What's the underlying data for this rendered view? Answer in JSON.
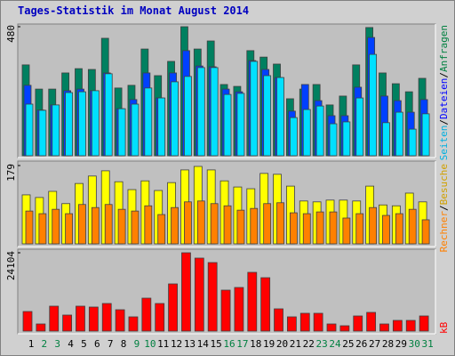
{
  "chart_data": [
    {
      "type": "bar",
      "title": "Tages-Statistik im Monat August 2014",
      "legend_separator": "/",
      "categories": [
        "1",
        "2",
        "3",
        "4",
        "5",
        "6",
        "7",
        "8",
        "9",
        "10",
        "11",
        "12",
        "13",
        "14",
        "15",
        "16",
        "17",
        "18",
        "19",
        "20",
        "21",
        "22",
        "23",
        "24",
        "25",
        "26",
        "27",
        "28",
        "29",
        "30",
        "31"
      ],
      "category_colors": [
        "#000000",
        "#008040",
        "#008040",
        "#000000",
        "#000000",
        "#000000",
        "#000000",
        "#000000",
        "#008040",
        "#008040",
        "#000000",
        "#000000",
        "#000000",
        "#000000",
        "#000000",
        "#008040",
        "#008040",
        "#000000",
        "#000000",
        "#000000",
        "#000000",
        "#000000",
        "#008040",
        "#008040",
        "#000000",
        "#000000",
        "#000000",
        "#000000",
        "#000000",
        "#008040",
        "#008040"
      ],
      "ylim": [
        0,
        480
      ],
      "yticks": [
        480
      ],
      "series": [
        {
          "name": "Anfragen",
          "color": "#008060",
          "label_color": "#008040",
          "values": [
            338,
            248,
            248,
            308,
            324,
            321,
            437,
            252,
            262,
            397,
            298,
            351,
            480,
            397,
            427,
            265,
            258,
            391,
            367,
            341,
            212,
            248,
            265,
            189,
            222,
            338,
            477,
            308,
            268,
            238,
            288
          ]
        },
        {
          "name": "Dateien",
          "color": "#0040ff",
          "label_color": "#0000ff",
          "values": [
            262,
            170,
            189,
            242,
            248,
            242,
            308,
            175,
            209,
            308,
            215,
            308,
            391,
            334,
            331,
            248,
            238,
            354,
            321,
            291,
            166,
            265,
            205,
            149,
            149,
            255,
            440,
            222,
            205,
            162,
            209
          ]
        },
        {
          "name": "Seiten",
          "color": "#00e0ff",
          "label_color": "#00b0e0",
          "values": [
            192,
            169,
            189,
            235,
            238,
            242,
            305,
            175,
            192,
            252,
            215,
            275,
            295,
            328,
            328,
            228,
            232,
            351,
            298,
            291,
            142,
            172,
            185,
            119,
            126,
            215,
            377,
            123,
            162,
            99,
            156
          ]
        }
      ]
    },
    {
      "type": "bar",
      "legend_separator": "/",
      "ylim": [
        0,
        179
      ],
      "yticks": [
        179
      ],
      "series": [
        {
          "name": "Besuche",
          "color": "#ffff00",
          "label_color": "#d0a000",
          "values": [
            112,
            106,
            120,
            92,
            138,
            155,
            167,
            142,
            124,
            144,
            122,
            140,
            169,
            177,
            169,
            144,
            130,
            126,
            161,
            159,
            132,
            98,
            96,
            100,
            100,
            98,
            132,
            89,
            87,
            116,
            96
          ]
        },
        {
          "name": "Rechner",
          "color": "#ff8000",
          "label_color": "#ff8000",
          "values": [
            75,
            69,
            79,
            69,
            90,
            83,
            90,
            79,
            75,
            87,
            67,
            83,
            96,
            98,
            92,
            87,
            77,
            81,
            92,
            94,
            71,
            69,
            73,
            73,
            59,
            69,
            83,
            65,
            69,
            79,
            55
          ]
        }
      ]
    },
    {
      "type": "bar",
      "ylim": [
        0,
        24104
      ],
      "yticks": [
        24104
      ],
      "series": [
        {
          "name": "kB",
          "color": "#ff0000",
          "label_color": "#ff0000",
          "values": [
            6026,
            2191,
            7670,
            4930,
            7670,
            7396,
            8491,
            6574,
            4383,
            10135,
            8491,
            14517,
            24104,
            22461,
            21091,
            12600,
            13422,
            18078,
            16435,
            6848,
            4383,
            5478,
            5478,
            2191,
            1643,
            4656,
            5752,
            2191,
            3287,
            3287,
            4656
          ]
        }
      ]
    }
  ]
}
